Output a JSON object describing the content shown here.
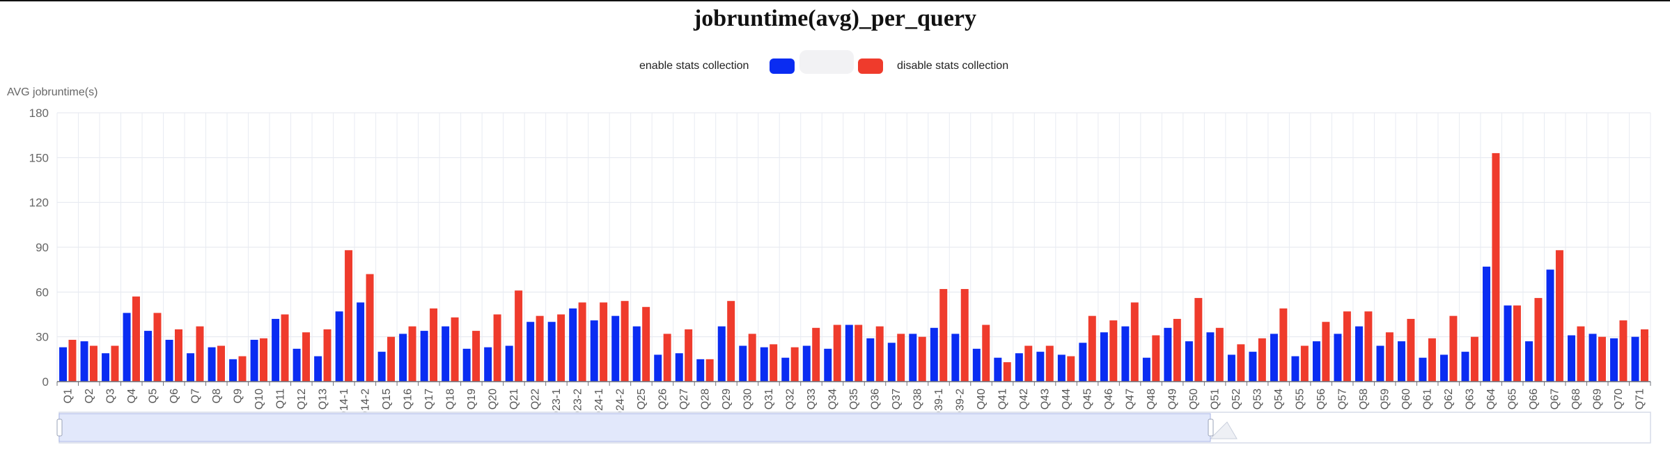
{
  "chart_data": {
    "type": "bar",
    "title": "jobruntime(avg)_per_query",
    "ylabel": "AVG jobruntime(s)",
    "xlabel": "",
    "ylim": [
      0,
      180
    ],
    "yticks": [
      0,
      30,
      60,
      90,
      120,
      150,
      180
    ],
    "legend_position": "top-center",
    "grid": true,
    "categories": [
      "Q1",
      "Q2",
      "Q3",
      "Q4",
      "Q5",
      "Q6",
      "Q7",
      "Q8",
      "Q9",
      "Q10",
      "Q11",
      "Q12",
      "Q13",
      "Q14-1",
      "Q14-2",
      "Q15",
      "Q16",
      "Q17",
      "Q18",
      "Q19",
      "Q20",
      "Q21",
      "Q22",
      "Q23-1",
      "Q23-2",
      "Q24-1",
      "Q24-2",
      "Q25",
      "Q26",
      "Q27",
      "Q28",
      "Q29",
      "Q30",
      "Q31",
      "Q32",
      "Q33",
      "Q34",
      "Q35",
      "Q36",
      "Q37",
      "Q38",
      "Q39-1",
      "Q39-2",
      "Q40",
      "Q41",
      "Q42",
      "Q43",
      "Q44",
      "Q45",
      "Q46",
      "Q47",
      "Q48",
      "Q49",
      "Q50",
      "Q51",
      "Q52",
      "Q53",
      "Q54",
      "Q55",
      "Q56",
      "Q57",
      "Q58",
      "Q59",
      "Q60",
      "Q61",
      "Q62",
      "Q63",
      "Q64",
      "Q65",
      "Q66",
      "Q67",
      "Q68",
      "Q69",
      "Q70",
      "Q71"
    ],
    "series": [
      {
        "name": "enable stats collection",
        "color": "#0a2cf2",
        "values": [
          23,
          27,
          19,
          46,
          34,
          28,
          19,
          23,
          15,
          28,
          42,
          22,
          17,
          47,
          53,
          20,
          32,
          34,
          37,
          22,
          23,
          24,
          40,
          40,
          49,
          41,
          44,
          37,
          18,
          19,
          15,
          37,
          24,
          23,
          16,
          24,
          22,
          38,
          29,
          26,
          32,
          36,
          32,
          22,
          16,
          19,
          20,
          18,
          26,
          33,
          37,
          16,
          36,
          27,
          33,
          18,
          20,
          32,
          17,
          27,
          32,
          37,
          24,
          27,
          16,
          18,
          20,
          77,
          51,
          27,
          75,
          31,
          32,
          29,
          30
        ]
      },
      {
        "name": "disable stats collection",
        "color": "#ef3b2c",
        "values": [
          28,
          24,
          24,
          57,
          46,
          35,
          37,
          24,
          17,
          29,
          45,
          33,
          35,
          88,
          72,
          30,
          37,
          49,
          43,
          34,
          45,
          61,
          44,
          45,
          53,
          53,
          54,
          50,
          32,
          35,
          15,
          54,
          32,
          25,
          23,
          36,
          38,
          38,
          37,
          32,
          30,
          62,
          62,
          38,
          13,
          24,
          24,
          17,
          44,
          41,
          53,
          31,
          42,
          56,
          36,
          25,
          29,
          49,
          24,
          40,
          47,
          47,
          33,
          42,
          29,
          44,
          30,
          153,
          51,
          56,
          88,
          37,
          30,
          41,
          35
        ]
      }
    ]
  }
}
